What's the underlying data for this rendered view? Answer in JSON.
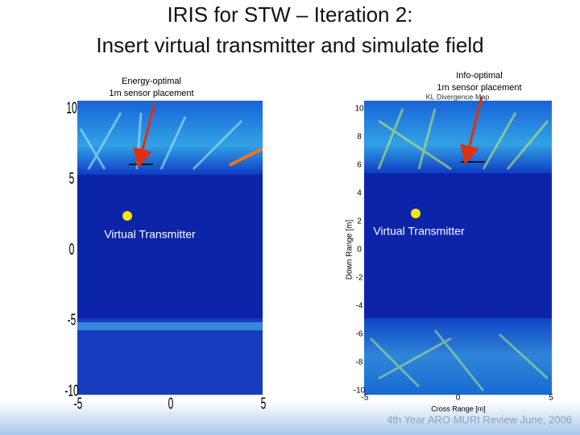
{
  "title": [
    "IRIS for STW – Iteration 2:",
    "Insert virtual transmitter and simulate field"
  ],
  "left_panel": {
    "annotation": [
      "Energy-optimal",
      "1m sensor placement"
    ],
    "yticks": [
      "10",
      "5",
      "0",
      "-5",
      "-10"
    ],
    "xticks": [
      "-5",
      "0",
      "5"
    ],
    "label": "Virtual Transmitter"
  },
  "right_panel": {
    "annotation": [
      "Info-optimal",
      "1m sensor placement"
    ],
    "plot_title": "KL Divergence Map",
    "yticks": [
      "10",
      "8",
      "6",
      "4",
      "2",
      "0",
      "-2",
      "-4",
      "-6",
      "-8",
      "-10"
    ],
    "xticks": [
      "-5",
      "0",
      "5"
    ],
    "ylabel": "Down Range [m]",
    "xlabel": "Cross Range [m]",
    "label": "Virtual Transmitter"
  },
  "footer": "4th Year ARO MURI Review June, 2006"
}
